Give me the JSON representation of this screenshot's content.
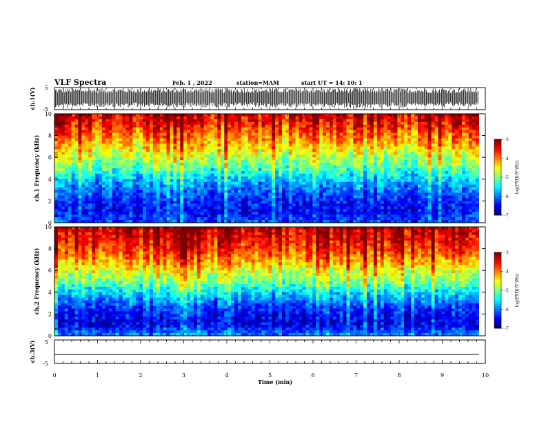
{
  "header": {
    "title": "VLF Spectra",
    "date": "Feb. 1 , 2022",
    "station": "station=MAM",
    "start": "start UT = 14: 10: 1"
  },
  "chart_data": [
    {
      "type": "line",
      "panel": "ch1-waveform",
      "ylabel": "ch.1(V)",
      "ylim": [
        -5,
        5
      ],
      "yticks": [
        "5",
        "-5"
      ],
      "description_values": "dense impulsive waveform (sferics) spanning full range",
      "xlim": [
        0,
        10
      ]
    },
    {
      "type": "heatmap",
      "panel": "ch1-spectrogram",
      "ylabel": "ch.1 Frequency (kHz)",
      "ylim": [
        0,
        10
      ],
      "yticks": [
        "0",
        "2",
        "4",
        "6",
        "8",
        "10"
      ],
      "xlim": [
        0,
        9.85
      ],
      "colorbar": {
        "label": "log(PSD)(V²/Hz)",
        "range": [
          -7,
          -3
        ],
        "ticks": [
          "-3",
          "-4",
          "-5",
          "-6",
          "-7"
        ]
      },
      "profile_kHz": [
        0,
        1,
        2,
        3,
        4,
        5,
        6,
        7,
        8,
        9,
        10
      ],
      "profile_logpsd": [
        -6.2,
        -6.5,
        -6.4,
        -6.1,
        -5.7,
        -5.2,
        -4.8,
        -4.4,
        -4.0,
        -3.6,
        -3.3
      ]
    },
    {
      "type": "heatmap",
      "panel": "ch2-spectrogram",
      "ylabel": "ch.2 Frequency (kHz)",
      "ylim": [
        0,
        10
      ],
      "yticks": [
        "0",
        "2",
        "4",
        "6",
        "8",
        "10"
      ],
      "xlim": [
        0,
        9.85
      ],
      "colorbar": {
        "label": "log(PSD)(V²/Hz)",
        "range": [
          -7,
          -3
        ],
        "ticks": [
          "-3",
          "-4",
          "-5",
          "-6",
          "-7"
        ]
      },
      "profile_kHz": [
        0,
        1,
        2,
        3,
        4,
        5,
        6,
        7,
        8,
        9,
        10
      ],
      "profile_logpsd": [
        -5.9,
        -6.6,
        -6.5,
        -6.1,
        -5.6,
        -5.0,
        -4.6,
        -4.1,
        -3.7,
        -3.4,
        -3.2
      ]
    },
    {
      "type": "line",
      "panel": "ch3-waveform",
      "ylabel": "ch.3(V)",
      "ylim": [
        -5,
        5
      ],
      "yticks": [
        "5",
        "-5"
      ],
      "x": [
        0,
        9.85
      ],
      "y": [
        -1.2,
        -1.2
      ],
      "xlim": [
        0,
        10
      ],
      "xlabel": "Time (min)",
      "xticks": [
        "0",
        "1",
        "2",
        "3",
        "4",
        "5",
        "6",
        "7",
        "8",
        "9",
        "10"
      ]
    }
  ]
}
